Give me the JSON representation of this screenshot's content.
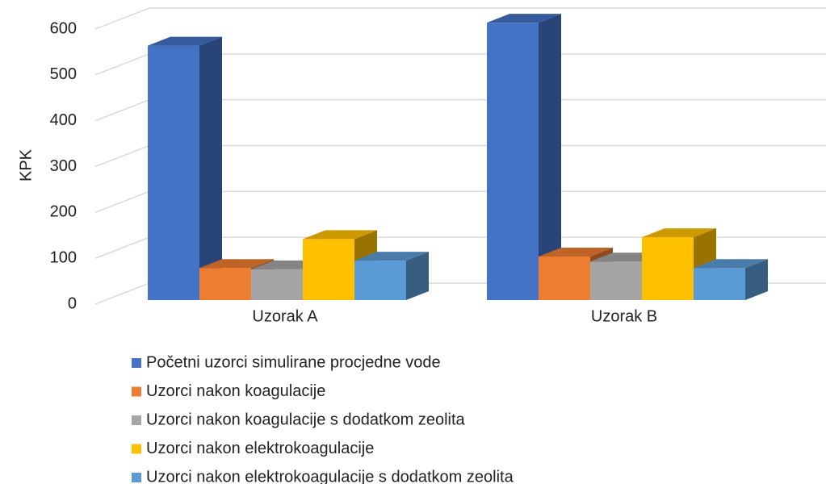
{
  "chart_data": {
    "type": "bar3d",
    "y_label": "KPK",
    "categories": [
      "Uzorak A",
      "Uzorak B"
    ],
    "series": [
      {
        "name": "Početni uzorci simulirane procjedne vode",
        "color": "#4472c4",
        "values": [
          555,
          605
        ]
      },
      {
        "name": "Uzorci nakon koagulacije",
        "color": "#ed7d31",
        "values": [
          70,
          95
        ]
      },
      {
        "name": "Uzorci nakon koagulacije s dodatkom zeolita",
        "color": "#a5a5a5",
        "values": [
          67,
          84
        ]
      },
      {
        "name": "Uzorci nakon elektrokoagulacije",
        "color": "#ffc000",
        "values": [
          133,
          137
        ]
      },
      {
        "name": "Uzorci nakon elektrokoagulacije s dodatkom zeolita",
        "color": "#5b9bd5",
        "values": [
          86,
          70
        ]
      }
    ],
    "ylim": [
      0,
      600
    ],
    "yticks": [
      0,
      100,
      200,
      300,
      400,
      500,
      600
    ],
    "grid": true,
    "legend": "bottom"
  }
}
